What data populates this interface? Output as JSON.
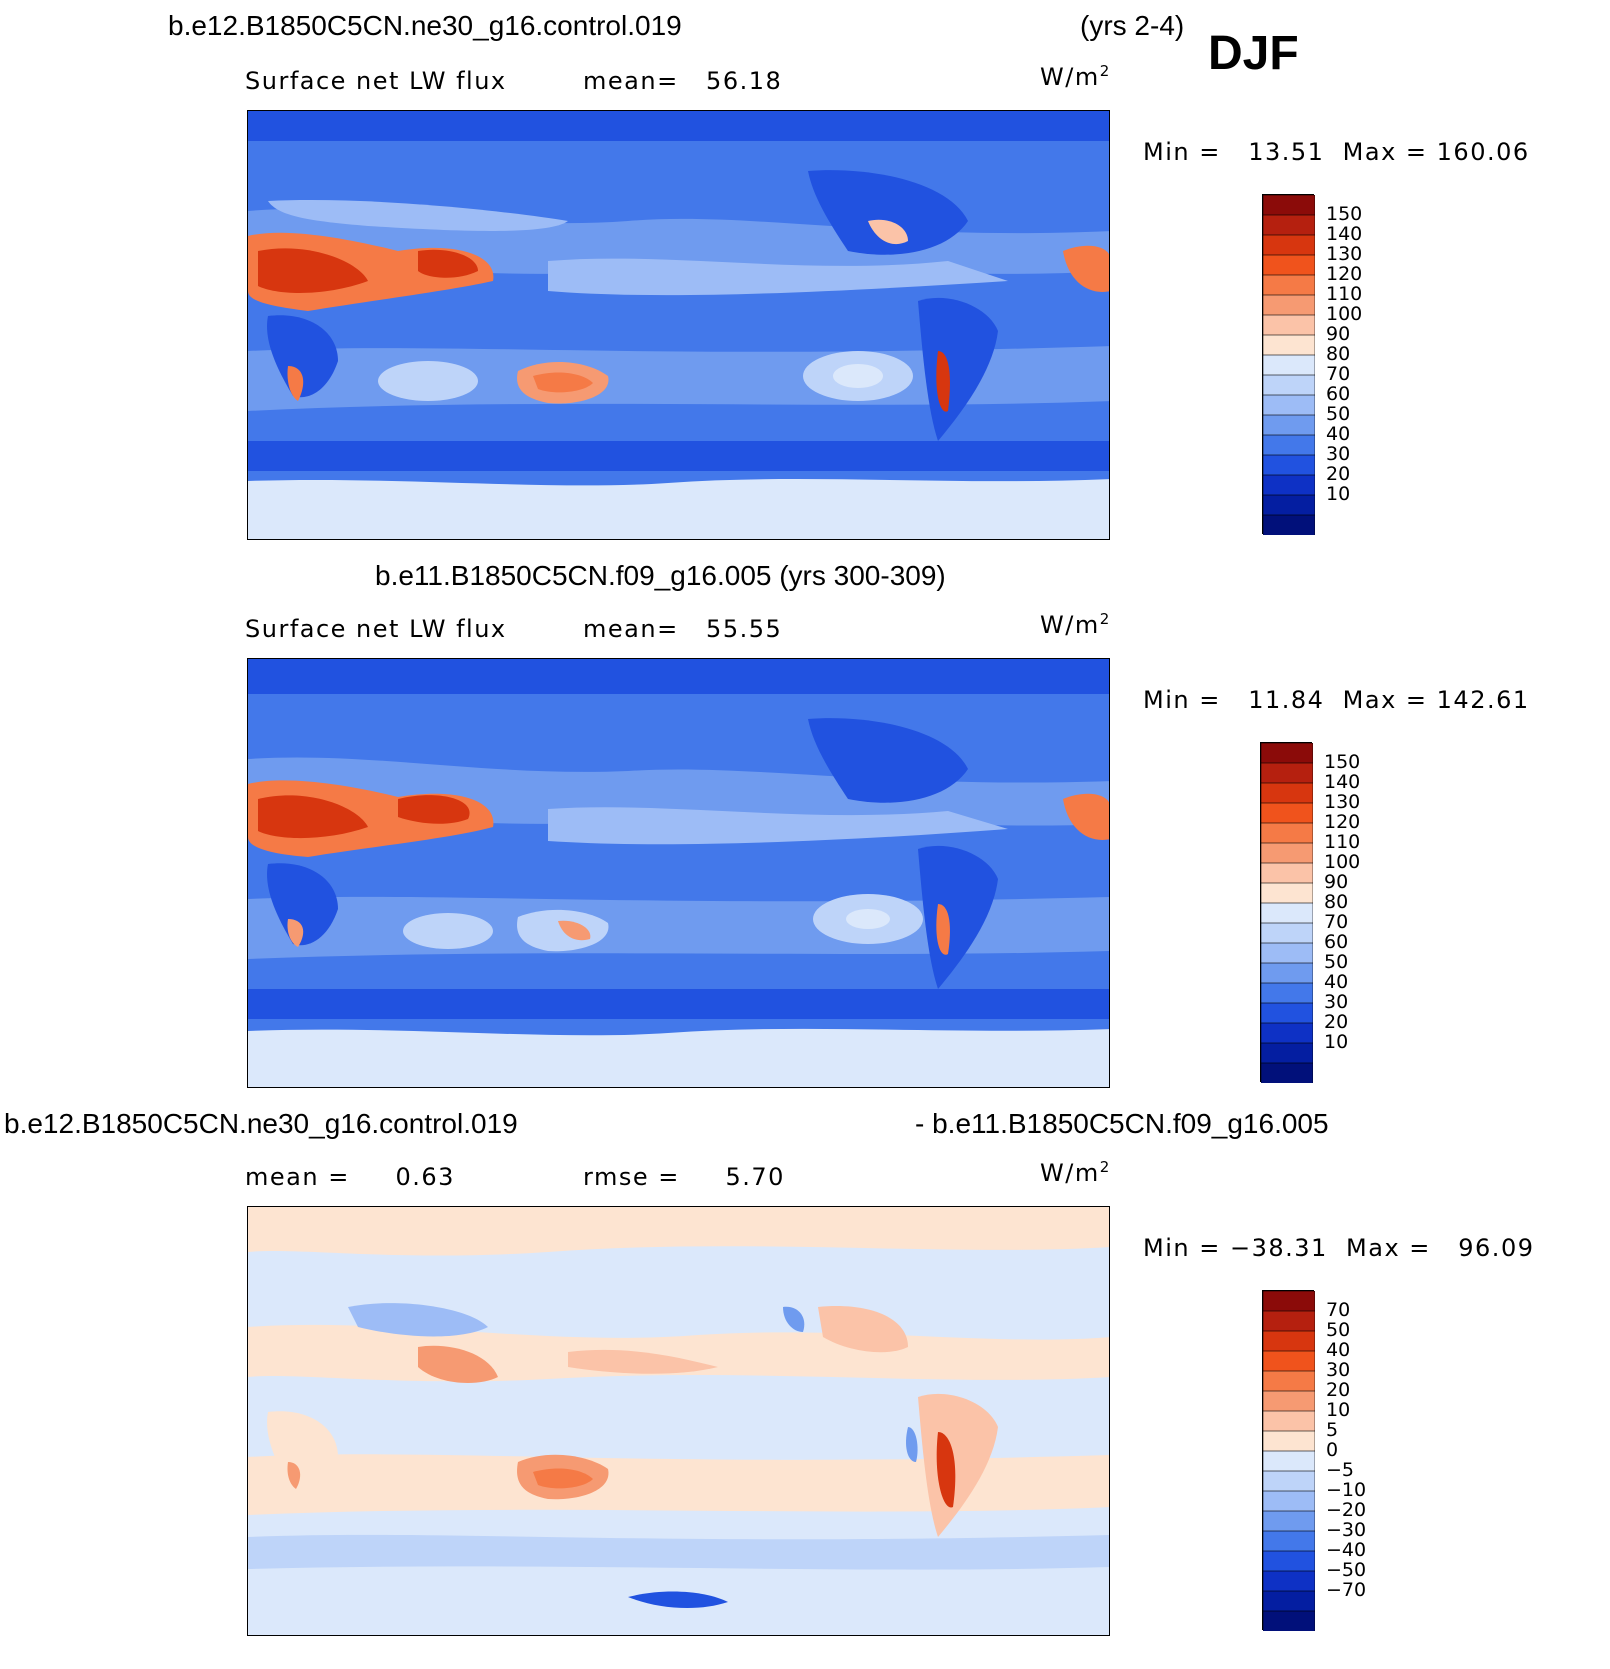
{
  "figure": {
    "season": "DJF",
    "panels": [
      {
        "id": "top",
        "title_left": "b.e12.B1850C5CN.ne30_g16.control.019",
        "title_right": "(yrs 2-4)",
        "variable": "Surface net LW flux",
        "stat_text": "mean=   56.18",
        "units_base": "W/m",
        "units_exp": "2",
        "range_text": "Min =   13.51  Max = 160.06",
        "colorbar_labels": [
          "150",
          "140",
          "130",
          "120",
          "110",
          "100",
          "90",
          "80",
          "70",
          "60",
          "50",
          "40",
          "30",
          "20",
          "10"
        ],
        "colorbar_colors": [
          "#8b0b09",
          "#b5200f",
          "#d7360f",
          "#f0531c",
          "#f57a46",
          "#f69a72",
          "#fbc3a8",
          "#fde4d1",
          "#dbe8fb",
          "#bed4f9",
          "#9dbcf6",
          "#6f9bef",
          "#4378ea",
          "#2152e0",
          "#0e31c5",
          "#041ea1",
          "#01107a"
        ],
        "colorbar_positions": [
          0,
          10,
          20,
          30,
          40,
          50,
          60,
          70,
          80,
          90,
          100,
          110,
          120,
          130,
          140,
          150,
          160
        ]
      },
      {
        "id": "middle",
        "title_left": "b.e11.B1850C5CN.f09_g16.005 (yrs 300-309)",
        "title_right": "",
        "variable": "Surface net LW flux",
        "stat_text": "mean=   55.55",
        "units_base": "W/m",
        "units_exp": "2",
        "range_text": "Min =   11.84  Max = 142.61",
        "colorbar_labels": [
          "150",
          "140",
          "130",
          "120",
          "110",
          "100",
          "90",
          "80",
          "70",
          "60",
          "50",
          "40",
          "30",
          "20",
          "10"
        ],
        "colorbar_colors": [
          "#8b0b09",
          "#b5200f",
          "#d7360f",
          "#f0531c",
          "#f57a46",
          "#f69a72",
          "#fbc3a8",
          "#fde4d1",
          "#dbe8fb",
          "#bed4f9",
          "#9dbcf6",
          "#6f9bef",
          "#4378ea",
          "#2152e0",
          "#0e31c5",
          "#041ea1",
          "#01107a"
        ]
      },
      {
        "id": "bottom",
        "title_left": "b.e12.B1850C5CN.ne30_g16.control.019",
        "title_right": "- b.e11.B1850C5CN.f09_g16.005",
        "variable": "mean =     0.63",
        "stat_text": "rmse =     5.70",
        "units_base": "W/m",
        "units_exp": "2",
        "range_text": "Min = −38.31  Max =   96.09",
        "colorbar_labels": [
          "70",
          "50",
          "40",
          "30",
          "20",
          "10",
          "5",
          "0",
          "−5",
          "−10",
          "−20",
          "−30",
          "−40",
          "−50",
          "−70"
        ],
        "colorbar_colors": [
          "#8b0b09",
          "#b5200f",
          "#d7360f",
          "#f0531c",
          "#f57a46",
          "#f69a72",
          "#fbc3a8",
          "#fde4d1",
          "#dbe8fb",
          "#bed4f9",
          "#9dbcf6",
          "#6f9bef",
          "#4378ea",
          "#2152e0",
          "#0e31c5",
          "#041ea1",
          "#01107a"
        ]
      }
    ]
  }
}
